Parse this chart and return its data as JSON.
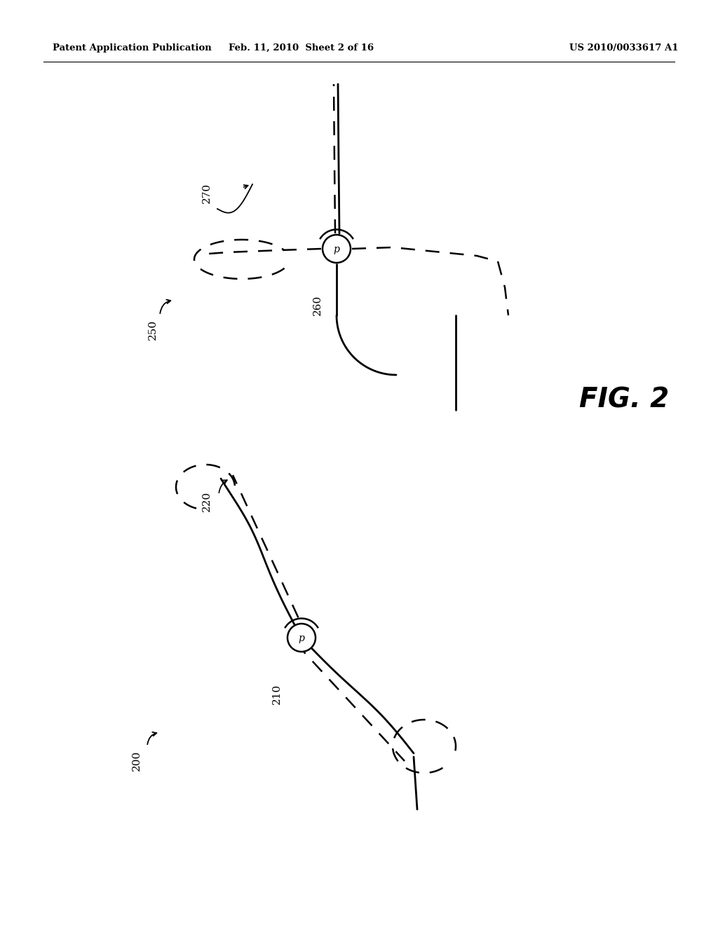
{
  "background_color": "#ffffff",
  "header_left": "Patent Application Publication",
  "header_center": "Feb. 11, 2010  Sheet 2 of 16",
  "header_right": "US 2010/0033617 A1",
  "fig_label": "FIG. 2"
}
